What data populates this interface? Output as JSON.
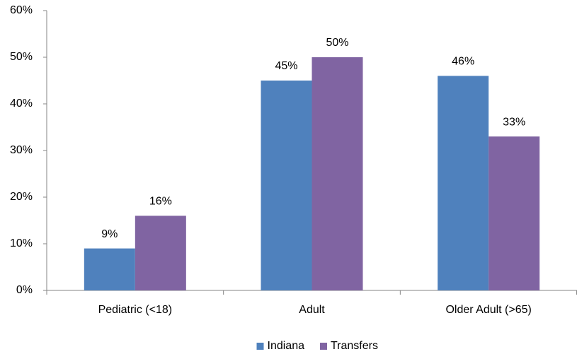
{
  "chart_data": {
    "type": "bar",
    "categories": [
      "Pediatric (<18)",
      "Adult",
      "Older Adult (>65)"
    ],
    "series": [
      {
        "name": "Indiana",
        "color": "#4f81bd",
        "values": [
          9,
          45,
          46
        ],
        "value_labels": [
          "9%",
          "45%",
          "46%"
        ]
      },
      {
        "name": "Transfers",
        "color": "#8064a2",
        "values": [
          16,
          50,
          33
        ],
        "value_labels": [
          "16%",
          "50%",
          "33%"
        ]
      }
    ],
    "ylim": [
      0,
      60
    ],
    "yticks": [
      {
        "value": 0,
        "label": "0%"
      },
      {
        "value": 10,
        "label": "10%"
      },
      {
        "value": 20,
        "label": "20%"
      },
      {
        "value": 30,
        "label": "30%"
      },
      {
        "value": 40,
        "label": "40%"
      },
      {
        "value": 50,
        "label": "50%"
      },
      {
        "value": 60,
        "label": "60%"
      }
    ],
    "grid": false,
    "legend": "bottom"
  }
}
